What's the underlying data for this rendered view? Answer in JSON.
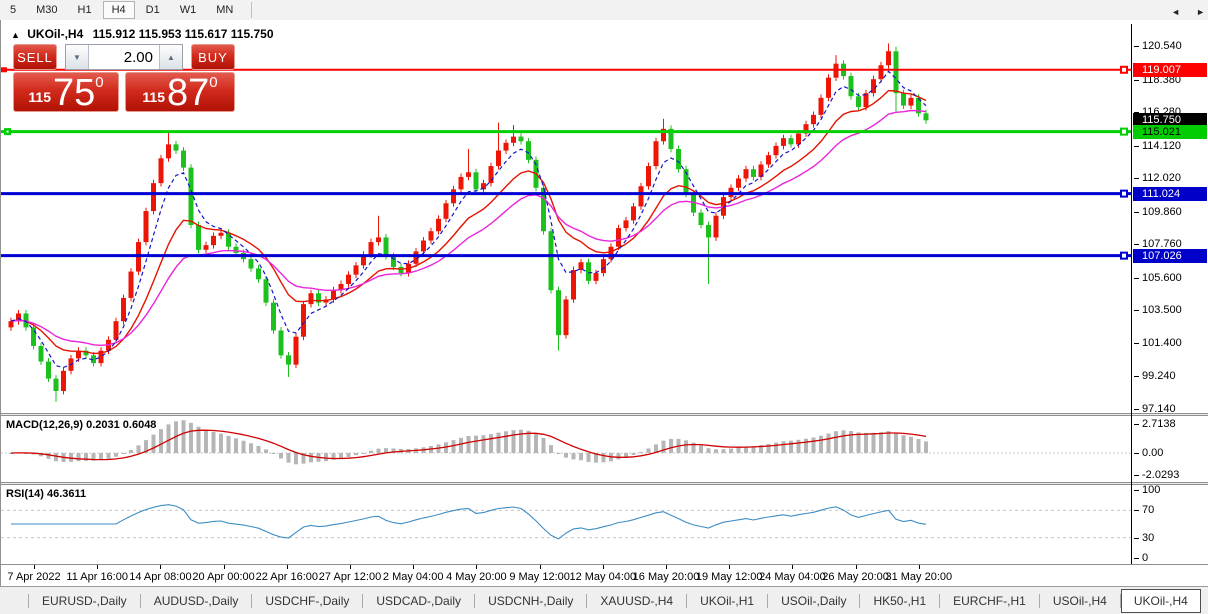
{
  "toolbar": {
    "timeframes": [
      {
        "label": "5",
        "active": false
      },
      {
        "label": "M30",
        "active": false
      },
      {
        "label": "H1",
        "active": false
      },
      {
        "label": "H4",
        "active": true
      },
      {
        "label": "D1",
        "active": false
      },
      {
        "label": "W1",
        "active": false
      },
      {
        "label": "MN",
        "active": false
      }
    ]
  },
  "chart": {
    "title": {
      "symbol": "UKOil-,H4",
      "ohlc": "115.912 115.953 115.617 115.750",
      "collapse_icon": "▲"
    },
    "trade_panel": {
      "sell_label": "SELL",
      "buy_label": "BUY",
      "volume": "2.00",
      "bid": {
        "prefix": "115",
        "big": "75",
        "sup": "0"
      },
      "ask": {
        "prefix": "115",
        "big": "87",
        "sup": "0"
      },
      "down_arrow": "▼",
      "up_arrow": "▲"
    },
    "price_axis": {
      "ticks": [
        "120.540",
        "118.380",
        "116.280",
        "114.120",
        "112.020",
        "109.860",
        "107.760",
        "105.600",
        "103.500",
        "101.400",
        "99.240",
        "97.140"
      ],
      "badges": [
        {
          "text": "119.007",
          "bg": "#ff0000",
          "fg": "#ffffff",
          "price": 119.007
        },
        {
          "text": "115.750",
          "bg": "#000000",
          "fg": "#ffffff",
          "price": 115.75
        },
        {
          "text": "115.021",
          "bg": "#00cc00",
          "fg": "#000000",
          "price": 115.021
        },
        {
          "text": "111.024",
          "bg": "#0000c8",
          "fg": "#ffffff",
          "price": 111.024
        },
        {
          "text": "107.026",
          "bg": "#0000c8",
          "fg": "#ffffff",
          "price": 107.026
        }
      ]
    },
    "macd_label": "MACD(12,26,9) 0.2031 0.6048",
    "rsi_label": "RSI(14) 46.3611"
  },
  "tabs": {
    "items": [
      {
        "label": "EURUSD-,Daily",
        "active": false
      },
      {
        "label": "AUDUSD-,Daily",
        "active": false
      },
      {
        "label": "USDCHF-,Daily",
        "active": false
      },
      {
        "label": "USDCAD-,Daily",
        "active": false
      },
      {
        "label": "USDCNH-,Daily",
        "active": false
      },
      {
        "label": "XAUUSD-,H4",
        "active": false
      },
      {
        "label": "UKOil-,H1",
        "active": false
      },
      {
        "label": "USOil-,Daily",
        "active": false
      },
      {
        "label": "HK50-,H1",
        "active": false
      },
      {
        "label": "EURCHF-,H1",
        "active": false
      },
      {
        "label": "USOil-,H4",
        "active": false
      },
      {
        "label": "UKOil-,H4",
        "active": true
      }
    ],
    "scroll_left": "◄",
    "scroll_right": "►"
  },
  "colors": {
    "bull": "#ed1506",
    "bear": "#1dc11d",
    "ma_fast": "#1515c8",
    "ma_mid": "#e41400",
    "ma_slow": "#ea25dc",
    "level_red": "#ff0000",
    "level_green": "#00cf00",
    "level_blue": "#0000d2",
    "macd_hist": "#b6b6b6",
    "macd_signal": "#d00000",
    "rsi_line": "#3d8dc4",
    "dashed_level": "#c8c8c8"
  },
  "chart_data": {
    "type": "candlestick",
    "symbol": "UKOil-",
    "timeframe": "H4",
    "title": "UKOil-,H4",
    "last_bar_ohlc": {
      "open": 115.912,
      "high": 115.953,
      "low": 115.617,
      "close": 115.75
    },
    "bid": 115.75,
    "ask": 115.87,
    "y_ticks": [
      120.54,
      118.38,
      116.28,
      114.12,
      112.02,
      109.86,
      107.76,
      105.6,
      103.5,
      101.4,
      99.24,
      97.14
    ],
    "x_labels": [
      "7 Apr 2022",
      "11 Apr 16:00",
      "14 Apr 08:00",
      "20 Apr 00:00",
      "22 Apr 16:00",
      "27 Apr 12:00",
      "2 May 04:00",
      "4 May 20:00",
      "9 May 12:00",
      "12 May 04:00",
      "16 May 20:00",
      "19 May 12:00",
      "24 May 04:00",
      "26 May 20:00",
      "31 May 20:00"
    ],
    "closes": [
      102.8,
      103.3,
      102.4,
      101.2,
      100.2,
      99.1,
      98.3,
      99.6,
      100.4,
      100.9,
      100.6,
      100.1,
      100.9,
      101.6,
      102.8,
      104.3,
      106.0,
      107.9,
      109.9,
      111.7,
      113.3,
      114.2,
      113.8,
      112.7,
      109.0,
      107.4,
      107.7,
      108.3,
      108.5,
      107.6,
      107.2,
      106.8,
      106.2,
      105.5,
      104.0,
      102.2,
      100.6,
      100.0,
      101.8,
      103.9,
      104.6,
      104.0,
      104.2,
      104.8,
      105.2,
      105.8,
      106.4,
      107.1,
      107.9,
      108.2,
      107.0,
      106.3,
      105.9,
      106.5,
      107.3,
      108.0,
      108.6,
      109.4,
      110.4,
      111.3,
      112.1,
      112.4,
      111.3,
      111.7,
      112.8,
      113.8,
      114.3,
      114.7,
      114.4,
      113.2,
      111.4,
      108.6,
      104.8,
      101.9,
      104.2,
      106.1,
      106.6,
      105.4,
      105.9,
      106.8,
      107.6,
      108.8,
      109.3,
      110.2,
      111.5,
      112.8,
      114.4,
      115.2,
      113.9,
      112.6,
      111.0,
      109.8,
      109.0,
      108.2,
      109.6,
      110.8,
      111.4,
      112.0,
      112.6,
      112.1,
      112.9,
      113.5,
      114.1,
      114.6,
      114.2,
      114.9,
      115.5,
      116.1,
      117.2,
      118.5,
      119.4,
      118.6,
      117.3,
      116.6,
      117.5,
      118.4,
      119.3,
      120.2,
      117.5,
      116.7,
      117.2,
      116.2,
      115.75
    ],
    "wick_highs": {
      "21": 114.95,
      "49": 109.6,
      "61": 113.9,
      "65": 115.6,
      "67": 115.45,
      "87": 115.85,
      "110": 119.95,
      "117": 120.7,
      "118": 120.5
    },
    "wick_lows": {
      "6": 97.6,
      "37": 99.2,
      "73": 100.9,
      "93": 105.2,
      "118": 116.3
    },
    "levels": [
      {
        "price": 119.007,
        "color": "#ff0000",
        "width": 2
      },
      {
        "price": 115.021,
        "color": "#00cf00",
        "width": 3
      },
      {
        "price": 111.024,
        "color": "#0000d2",
        "width": 3
      },
      {
        "price": 107.026,
        "color": "#0000d2",
        "width": 3
      }
    ],
    "indicators": {
      "moving_averages": [
        {
          "period": 5,
          "style": "dashed",
          "color": "#1515c8"
        },
        {
          "period": 12,
          "style": "solid",
          "color": "#e41400"
        },
        {
          "period": 22,
          "style": "solid",
          "color": "#ea25dc"
        }
      ],
      "macd": {
        "fast": 12,
        "slow": 26,
        "signal": 9,
        "current_main": 0.2031,
        "current_signal": 0.6048,
        "axis": [
          2.7138,
          0.0,
          -2.0293
        ]
      },
      "rsi": {
        "period": 14,
        "current": 46.3611,
        "axis": [
          100,
          70,
          30,
          0
        ],
        "levels": [
          70,
          30
        ]
      }
    }
  }
}
